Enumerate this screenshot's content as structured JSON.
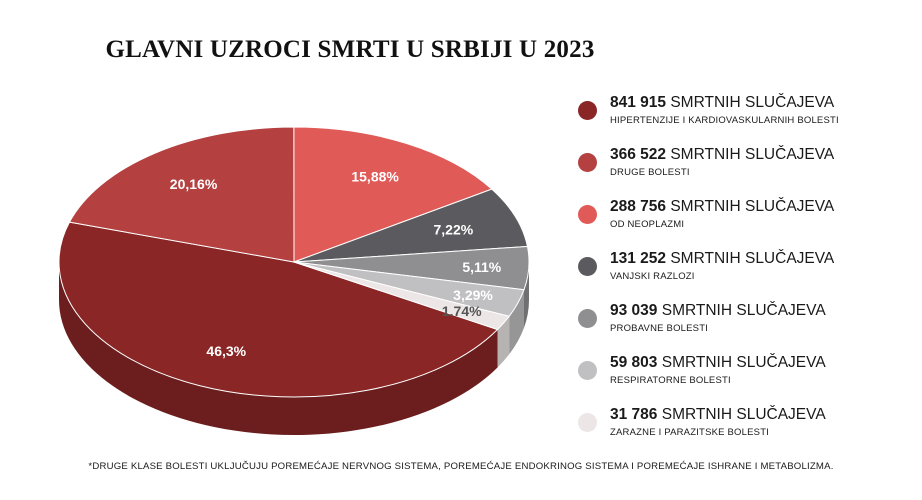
{
  "title": "GLAVNI UZROCI SMRTI U SRBIJI U 2023",
  "footnote": "*DRUGE KLASE BOLESTI UKLJUČUJU POREMEĆAJE NERVNOG SISTEMA, POREMEĆAJE ENDOKRINOG SISTEMA I POREMEĆAJE ISHRANE I METABOLIZMA.",
  "chart_data": {
    "type": "pie",
    "title": "GLAVNI UZROCI SMRTI U SRBIJI U 2023",
    "slices": [
      {
        "label": "HIPERTENZIJE I KARDIOVASKULARNIH BOLESTI",
        "count": 841915,
        "count_text": "841 915",
        "percent": 46.3,
        "percent_text": "46,3%",
        "color": "#8b2626"
      },
      {
        "label": "DRUGE BOLESTI",
        "count": 366522,
        "count_text": "366 522",
        "percent": 20.16,
        "percent_text": "20,16%",
        "color": "#b44040"
      },
      {
        "label": "OD NEOPLAZMI",
        "count": 288756,
        "count_text": "288 756",
        "percent": 15.88,
        "percent_text": "15,88%",
        "color": "#e05a57"
      },
      {
        "label": "VANJSKI RAZLOZI",
        "count": 131252,
        "count_text": "131 252",
        "percent": 7.22,
        "percent_text": "7,22%",
        "color": "#5a5a5f"
      },
      {
        "label": "PROBAVNE BOLESTI",
        "count": 93039,
        "count_text": "93 039",
        "percent": 5.11,
        "percent_text": "5,11%",
        "color": "#8f8f92"
      },
      {
        "label": "RESPIRATORNE BOLESTI",
        "count": 59803,
        "count_text": "59 803",
        "percent": 3.29,
        "percent_text": "3,29%",
        "color": "#c0c0c2"
      },
      {
        "label": "ZARAZNE I PARAZITSKE BOLESTI",
        "count": 31786,
        "count_text": "31 786",
        "percent": 1.74,
        "percent_text": "1.74%",
        "color": "#ece6e6"
      }
    ],
    "unit_label": "SMRTNIH SLUČAJEVA",
    "legend_position": "right"
  }
}
